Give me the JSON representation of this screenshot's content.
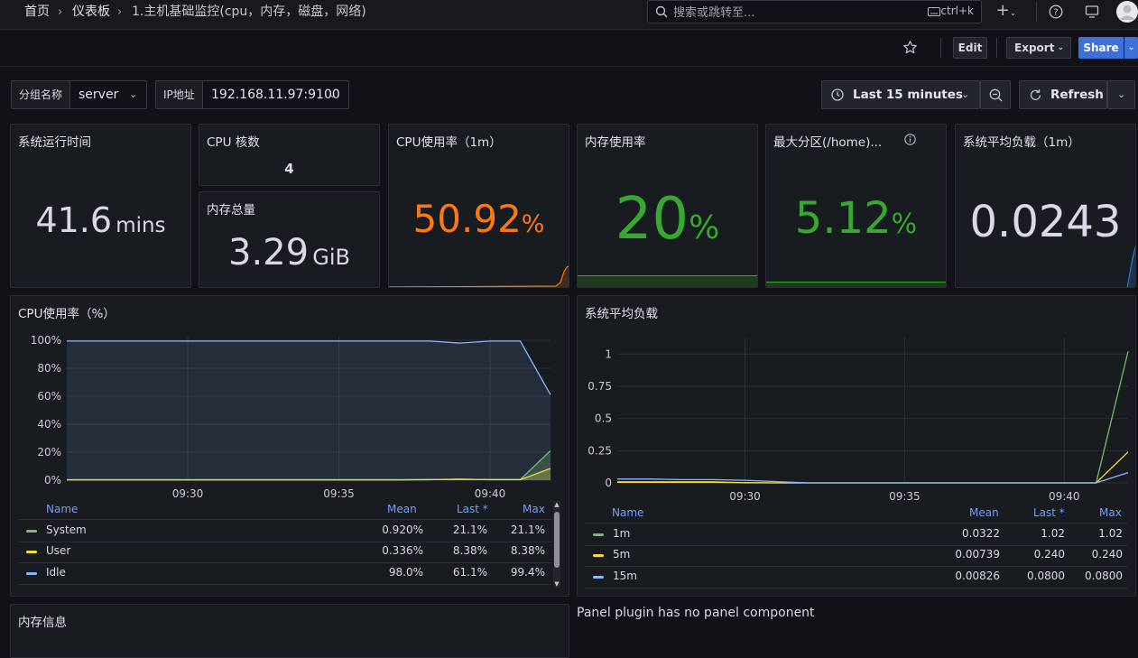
{
  "breadcrumbs": {
    "home": "首页",
    "dashboards": "仪表板",
    "current": "1.主机基础监控(cpu，内存，磁盘，网络)"
  },
  "search": {
    "placeholder": "搜索或跳转至...",
    "shortcut": "ctrl+k"
  },
  "toolbar": {
    "edit_label": "Edit",
    "export_label": "Export",
    "share_label": "Share"
  },
  "variables": [
    {
      "label": "分组名称",
      "value": "server"
    },
    {
      "label": "IP地址",
      "value": "192.168.11.97:9100"
    }
  ],
  "time_picker": {
    "range_label": "Last 15 minutes",
    "refresh_label": "Refresh"
  },
  "stats": {
    "uptime": {
      "title": "系统运行时间",
      "value": "41.6",
      "unit": "mins"
    },
    "cpu_cores": {
      "title": "CPU 核数",
      "value": "4"
    },
    "mem_total": {
      "title": "内存总量",
      "value": "3.29",
      "unit": "GiB"
    },
    "cpu_usage": {
      "title": "CPU使用率（1m）",
      "value": "50.92",
      "unit": "%",
      "color": "#ff780a"
    },
    "mem_usage": {
      "title": "内存使用率",
      "value": "20",
      "unit": "%",
      "color": "#37a830"
    },
    "max_partition": {
      "title": "最大分区(/home)...",
      "value": "5.12",
      "unit": "%",
      "color": "#37a830"
    },
    "load_avg": {
      "title": "系统平均负载（1m）",
      "value": "0.0243",
      "color": "#d8d9e2"
    }
  },
  "cpu_chart": {
    "title": "CPU使用率（%）",
    "legend_headers": {
      "name": "Name",
      "mean": "Mean",
      "last": "Last *",
      "max": "Max"
    },
    "legend": [
      {
        "name": "System",
        "mean": "0.920%",
        "last": "21.1%",
        "max": "21.1%",
        "color": "#73bf69"
      },
      {
        "name": "User",
        "mean": "0.336%",
        "last": "8.38%",
        "max": "8.38%",
        "color": "#fade2a"
      },
      {
        "name": "Idle",
        "mean": "98.0%",
        "last": "61.1%",
        "max": "99.4%",
        "color": "#8ab8ff"
      }
    ]
  },
  "load_chart": {
    "title": "系统平均负载",
    "legend_headers": {
      "name": "Name",
      "mean": "Mean",
      "last": "Last *",
      "max": "Max"
    },
    "legend": [
      {
        "name": "1m",
        "mean": "0.0322",
        "last": "1.02",
        "max": "1.02",
        "color": "#73bf69"
      },
      {
        "name": "5m",
        "mean": "0.00739",
        "last": "0.240",
        "max": "0.240",
        "color": "#fade2a"
      },
      {
        "name": "15m",
        "mean": "0.00826",
        "last": "0.0800",
        "max": "0.0800",
        "color": "#8ab8ff"
      }
    ]
  },
  "mem_info": {
    "title": "内存信息"
  },
  "plugin_message": "Panel plugin has no panel component",
  "chart_data": [
    {
      "type": "area",
      "title": "CPU使用率（%）",
      "x": [
        "09:26",
        "09:27",
        "09:28",
        "09:29",
        "09:30",
        "09:31",
        "09:32",
        "09:33",
        "09:34",
        "09:35",
        "09:36",
        "09:37",
        "09:38",
        "09:39",
        "09:40",
        "09:41",
        "09:42"
      ],
      "x_ticks": [
        "09:30",
        "09:35",
        "09:40"
      ],
      "y_ticks": [
        "0%",
        "20%",
        "40%",
        "60%",
        "80%",
        "100%"
      ],
      "ylim": [
        0,
        100
      ],
      "series": [
        {
          "name": "System",
          "values": [
            0.4,
            0.4,
            0.4,
            0.4,
            0.4,
            0.4,
            0.4,
            0.4,
            0.4,
            0.4,
            0.4,
            0.4,
            0.5,
            0.4,
            0.5,
            0.5,
            21.1
          ]
        },
        {
          "name": "User",
          "values": [
            0.2,
            0.2,
            0.2,
            0.2,
            0.2,
            0.2,
            0.2,
            0.2,
            0.2,
            0.2,
            0.2,
            0.2,
            0.3,
            0.8,
            0.3,
            0.3,
            8.38
          ]
        },
        {
          "name": "Idle",
          "values": [
            99.4,
            99.4,
            99.4,
            99.4,
            99.4,
            99.4,
            99.4,
            99.4,
            99.4,
            99.4,
            99.4,
            99.4,
            99.4,
            98.0,
            99.4,
            99.4,
            61.1
          ]
        }
      ]
    },
    {
      "type": "line",
      "title": "系统平均负载",
      "x": [
        "09:26",
        "09:27",
        "09:28",
        "09:29",
        "09:30",
        "09:31",
        "09:32",
        "09:33",
        "09:34",
        "09:35",
        "09:36",
        "09:37",
        "09:38",
        "09:39",
        "09:40",
        "09:41",
        "09:42"
      ],
      "x_ticks": [
        "09:30",
        "09:35",
        "09:40"
      ],
      "y_ticks": [
        "0",
        "0.25",
        "0.5",
        "0.75",
        "1"
      ],
      "ylim": [
        0,
        1.1
      ],
      "series": [
        {
          "name": "1m",
          "values": [
            0.01,
            0.01,
            0.01,
            0.01,
            0,
            0,
            0,
            0,
            0,
            0,
            0,
            0,
            0,
            0,
            0,
            0,
            1.02
          ]
        },
        {
          "name": "5m",
          "values": [
            0.005,
            0.005,
            0.005,
            0.005,
            0.002,
            0,
            0,
            0,
            0,
            0,
            0,
            0,
            0,
            0,
            0,
            0,
            0.24
          ]
        },
        {
          "name": "15m",
          "values": [
            0.03,
            0.03,
            0.025,
            0.025,
            0.02,
            0.01,
            0,
            0,
            0,
            0,
            0,
            0,
            0,
            0,
            0,
            0,
            0.08
          ]
        }
      ]
    }
  ]
}
